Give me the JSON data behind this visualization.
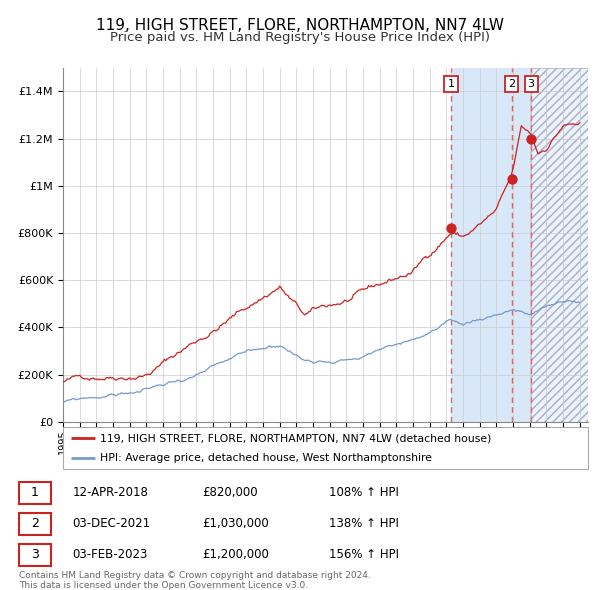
{
  "title": "119, HIGH STREET, FLORE, NORTHAMPTON, NN7 4LW",
  "subtitle": "Price paid vs. HM Land Registry's House Price Index (HPI)",
  "title_fontsize": 11,
  "subtitle_fontsize": 9.5,
  "red_line_color": "#cc2222",
  "blue_line_color": "#7799cc",
  "dashed_line_color": "#dd6666",
  "shaded_bg_color": "#d8e8f8",
  "hatch_color": "#ccccdd",
  "ylim": [
    0,
    1500000
  ],
  "yticks": [
    0,
    200000,
    400000,
    600000,
    800000,
    1000000,
    1200000,
    1400000
  ],
  "ytick_labels": [
    "£0",
    "£200K",
    "£400K",
    "£600K",
    "£800K",
    "£1M",
    "£1.2M",
    "£1.4M"
  ],
  "xtick_years": [
    1995,
    1996,
    1997,
    1998,
    1999,
    2000,
    2001,
    2002,
    2003,
    2004,
    2005,
    2006,
    2007,
    2008,
    2009,
    2010,
    2011,
    2012,
    2013,
    2014,
    2015,
    2016,
    2017,
    2018,
    2019,
    2020,
    2021,
    2022,
    2023,
    2024,
    2025,
    2026
  ],
  "transaction1": {
    "label": "1",
    "date_x": 2018.28,
    "price": 820000,
    "date_str": "12-APR-2018",
    "price_str": "£820,000",
    "hpi_str": "108% ↑ HPI"
  },
  "transaction2": {
    "label": "2",
    "date_x": 2021.92,
    "price": 1030000,
    "date_str": "03-DEC-2021",
    "price_str": "£1,030,000",
    "hpi_str": "138% ↑ HPI"
  },
  "transaction3": {
    "label": "3",
    "date_x": 2023.09,
    "price": 1200000,
    "date_str": "03-FEB-2023",
    "price_str": "£1,200,000",
    "hpi_str": "156% ↑ HPI"
  },
  "legend_line1": "119, HIGH STREET, FLORE, NORTHAMPTON, NN7 4LW (detached house)",
  "legend_line2": "HPI: Average price, detached house, West Northamptonshire",
  "footer1": "Contains HM Land Registry data © Crown copyright and database right 2024.",
  "footer2": "This data is licensed under the Open Government Licence v3.0.",
  "shaded_start_x": 2018.28,
  "shaded_end_x": 2023.09,
  "xmin": 1995.0,
  "xmax": 2026.5
}
